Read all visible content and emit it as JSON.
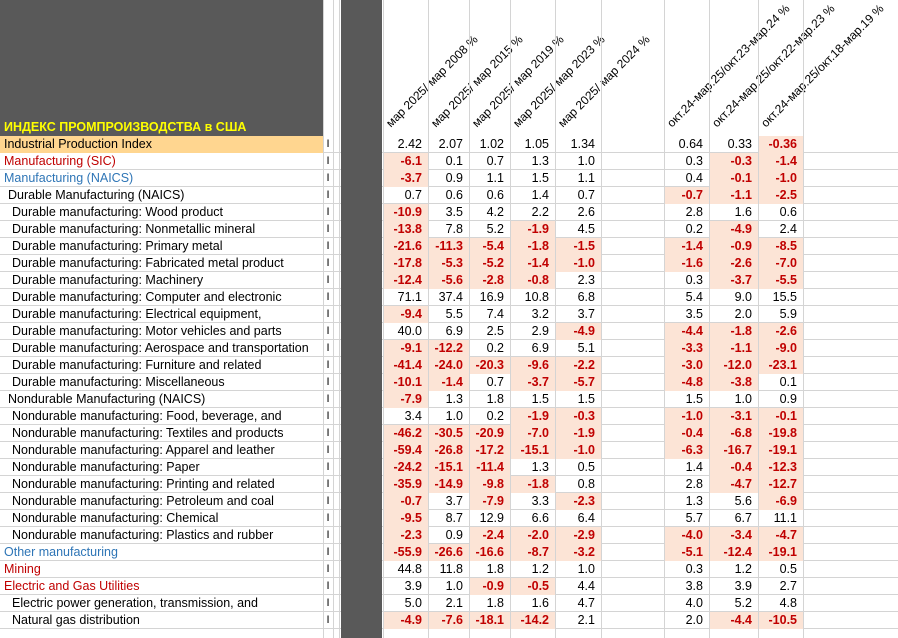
{
  "sheet_title": "ИНДЕКС ПРОМПРОИЗВОДСТВА в США",
  "column_headers": [
    "мар 2025/ мар 2008 %",
    "мар 2025/ мар 2015 %",
    "мар 2025/ мар 2019 %",
    "мар 2025/ мар 2023 %",
    "мар 2025/ мар 2024 %",
    "окт.24-мар.25/окт.23-мар.24 %",
    "окт.24-мар.25/окт.22-мар.23 %",
    "окт.24-мар.25/окт.18-мар.19 %"
  ],
  "marker": "I",
  "colors": {
    "red": "#c00000",
    "blue": "#2e75b6",
    "negative_fill": "#fce4d6",
    "highlight": "#ffd690",
    "title": "#ffff00"
  },
  "rows": [
    {
      "label": "Industrial Production Index",
      "style": "black",
      "highlight": true,
      "v": [
        "2.42",
        "2.07",
        "1.02",
        "1.05",
        "1.34",
        "0.64",
        "0.33",
        "-0.36"
      ]
    },
    {
      "label": "Manufacturing (SIC)",
      "style": "red",
      "v": [
        "-6.1",
        "0.1",
        "0.7",
        "1.3",
        "1.0",
        "0.3",
        "-0.3",
        "-1.4"
      ]
    },
    {
      "label": "Manufacturing (NAICS)",
      "style": "blue",
      "v": [
        "-3.7",
        "0.9",
        "1.1",
        "1.5",
        "1.1",
        "0.4",
        "-0.1",
        "-1.0"
      ]
    },
    {
      "label": "Durable Manufacturing (NAICS)",
      "style": "black",
      "indent": 1,
      "v": [
        "0.7",
        "0.6",
        "0.6",
        "1.4",
        "0.7",
        "-0.7",
        "-1.1",
        "-2.5"
      ]
    },
    {
      "label": "Durable manufacturing: Wood product",
      "style": "black",
      "indent": 2,
      "v": [
        "-10.9",
        "3.5",
        "4.2",
        "2.2",
        "2.6",
        "2.8",
        "1.6",
        "0.6"
      ]
    },
    {
      "label": "Durable manufacturing: Nonmetallic mineral",
      "style": "black",
      "indent": 2,
      "v": [
        "-13.8",
        "7.8",
        "5.2",
        "-1.9",
        "4.5",
        "0.2",
        "-4.9",
        "2.4"
      ]
    },
    {
      "label": "Durable manufacturing: Primary metal",
      "style": "black",
      "indent": 2,
      "v": [
        "-21.6",
        "-11.3",
        "-5.4",
        "-1.8",
        "-1.5",
        "-1.4",
        "-0.9",
        "-8.5"
      ]
    },
    {
      "label": "Durable manufacturing: Fabricated metal product",
      "style": "black",
      "indent": 2,
      "v": [
        "-17.8",
        "-5.3",
        "-5.2",
        "-1.4",
        "-1.0",
        "-1.6",
        "-2.6",
        "-7.0"
      ]
    },
    {
      "label": "Durable manufacturing: Machinery",
      "style": "black",
      "indent": 2,
      "v": [
        "-12.4",
        "-5.6",
        "-2.8",
        "-0.8",
        "2.3",
        "0.3",
        "-3.7",
        "-5.5"
      ]
    },
    {
      "label": "Durable manufacturing: Computer and electronic",
      "style": "black",
      "indent": 2,
      "v": [
        "71.1",
        "37.4",
        "16.9",
        "10.8",
        "6.8",
        "5.4",
        "9.0",
        "15.5"
      ]
    },
    {
      "label": "Durable manufacturing: Electrical equipment,",
      "style": "black",
      "indent": 2,
      "v": [
        "-9.4",
        "5.5",
        "7.4",
        "3.2",
        "3.7",
        "3.5",
        "2.0",
        "5.9"
      ]
    },
    {
      "label": "Durable manufacturing: Motor vehicles and parts",
      "style": "black",
      "indent": 2,
      "v": [
        "40.0",
        "6.9",
        "2.5",
        "2.9",
        "-4.9",
        "-4.4",
        "-1.8",
        "-2.6"
      ]
    },
    {
      "label": "Durable manufacturing: Aerospace and transportation",
      "style": "black",
      "indent": 2,
      "v": [
        "-9.1",
        "-12.2",
        "0.2",
        "6.9",
        "5.1",
        "-3.3",
        "-1.1",
        "-9.0"
      ]
    },
    {
      "label": "Durable manufacturing: Furniture and related",
      "style": "black",
      "indent": 2,
      "v": [
        "-41.4",
        "-24.0",
        "-20.3",
        "-9.6",
        "-2.2",
        "-3.0",
        "-12.0",
        "-23.1"
      ]
    },
    {
      "label": "Durable manufacturing: Miscellaneous",
      "style": "black",
      "indent": 2,
      "v": [
        "-10.1",
        "-1.4",
        "0.7",
        "-3.7",
        "-5.7",
        "-4.8",
        "-3.8",
        "0.1"
      ]
    },
    {
      "label": "Nondurable Manufacturing (NAICS)",
      "style": "black",
      "indent": 1,
      "v": [
        "-7.9",
        "1.3",
        "1.8",
        "1.5",
        "1.5",
        "1.5",
        "1.0",
        "0.9"
      ]
    },
    {
      "label": "Nondurable manufacturing: Food, beverage, and",
      "style": "black",
      "indent": 2,
      "v": [
        "3.4",
        "1.0",
        "0.2",
        "-1.9",
        "-0.3",
        "-1.0",
        "-3.1",
        "-0.1"
      ]
    },
    {
      "label": "Nondurable manufacturing: Textiles and products",
      "style": "black",
      "indent": 2,
      "v": [
        "-46.2",
        "-30.5",
        "-20.9",
        "-7.0",
        "-1.9",
        "-0.4",
        "-6.8",
        "-19.8"
      ]
    },
    {
      "label": "Nondurable manufacturing: Apparel and leather",
      "style": "black",
      "indent": 2,
      "v": [
        "-59.4",
        "-26.8",
        "-17.2",
        "-15.1",
        "-1.0",
        "-6.3",
        "-16.7",
        "-19.1"
      ]
    },
    {
      "label": "Nondurable manufacturing: Paper",
      "style": "black",
      "indent": 2,
      "v": [
        "-24.2",
        "-15.1",
        "-11.4",
        "1.3",
        "0.5",
        "1.4",
        "-0.4",
        "-12.3"
      ]
    },
    {
      "label": "Nondurable manufacturing: Printing and related",
      "style": "black",
      "indent": 2,
      "v": [
        "-35.9",
        "-14.9",
        "-9.8",
        "-1.8",
        "0.8",
        "2.8",
        "-4.7",
        "-12.7"
      ]
    },
    {
      "label": "Nondurable manufacturing: Petroleum and coal",
      "style": "black",
      "indent": 2,
      "v": [
        "-0.7",
        "3.7",
        "-7.9",
        "3.3",
        "-2.3",
        "1.3",
        "5.6",
        "-6.9"
      ]
    },
    {
      "label": "Nondurable manufacturing: Chemical",
      "style": "black",
      "indent": 2,
      "v": [
        "-9.5",
        "8.7",
        "12.9",
        "6.6",
        "6.4",
        "5.7",
        "6.7",
        "11.1"
      ]
    },
    {
      "label": "Nondurable manufacturing: Plastics and rubber",
      "style": "black",
      "indent": 2,
      "v": [
        "-2.3",
        "0.9",
        "-2.4",
        "-2.0",
        "-2.9",
        "-4.0",
        "-3.4",
        "-4.7"
      ]
    },
    {
      "label": "Other manufacturing",
      "style": "blue",
      "v": [
        "-55.9",
        "-26.6",
        "-16.6",
        "-8.7",
        "-3.2",
        "-5.1",
        "-12.4",
        "-19.1"
      ]
    },
    {
      "label": "Mining",
      "style": "red",
      "v": [
        "44.8",
        "11.8",
        "1.8",
        "1.2",
        "1.0",
        "0.3",
        "1.2",
        "0.5"
      ]
    },
    {
      "label": "Electric and Gas Utilities",
      "style": "red",
      "v": [
        "3.9",
        "1.0",
        "-0.9",
        "-0.5",
        "4.4",
        "3.8",
        "3.9",
        "2.7"
      ]
    },
    {
      "label": "Electric power generation, transmission, and",
      "style": "black",
      "indent": 2,
      "v": [
        "5.0",
        "2.1",
        "1.8",
        "1.6",
        "4.7",
        "4.0",
        "5.2",
        "4.8"
      ]
    },
    {
      "label": "Natural gas distribution",
      "style": "black",
      "indent": 2,
      "v": [
        "-4.9",
        "-7.6",
        "-18.1",
        "-14.2",
        "2.1",
        "2.0",
        "-4.4",
        "-10.5"
      ]
    }
  ]
}
